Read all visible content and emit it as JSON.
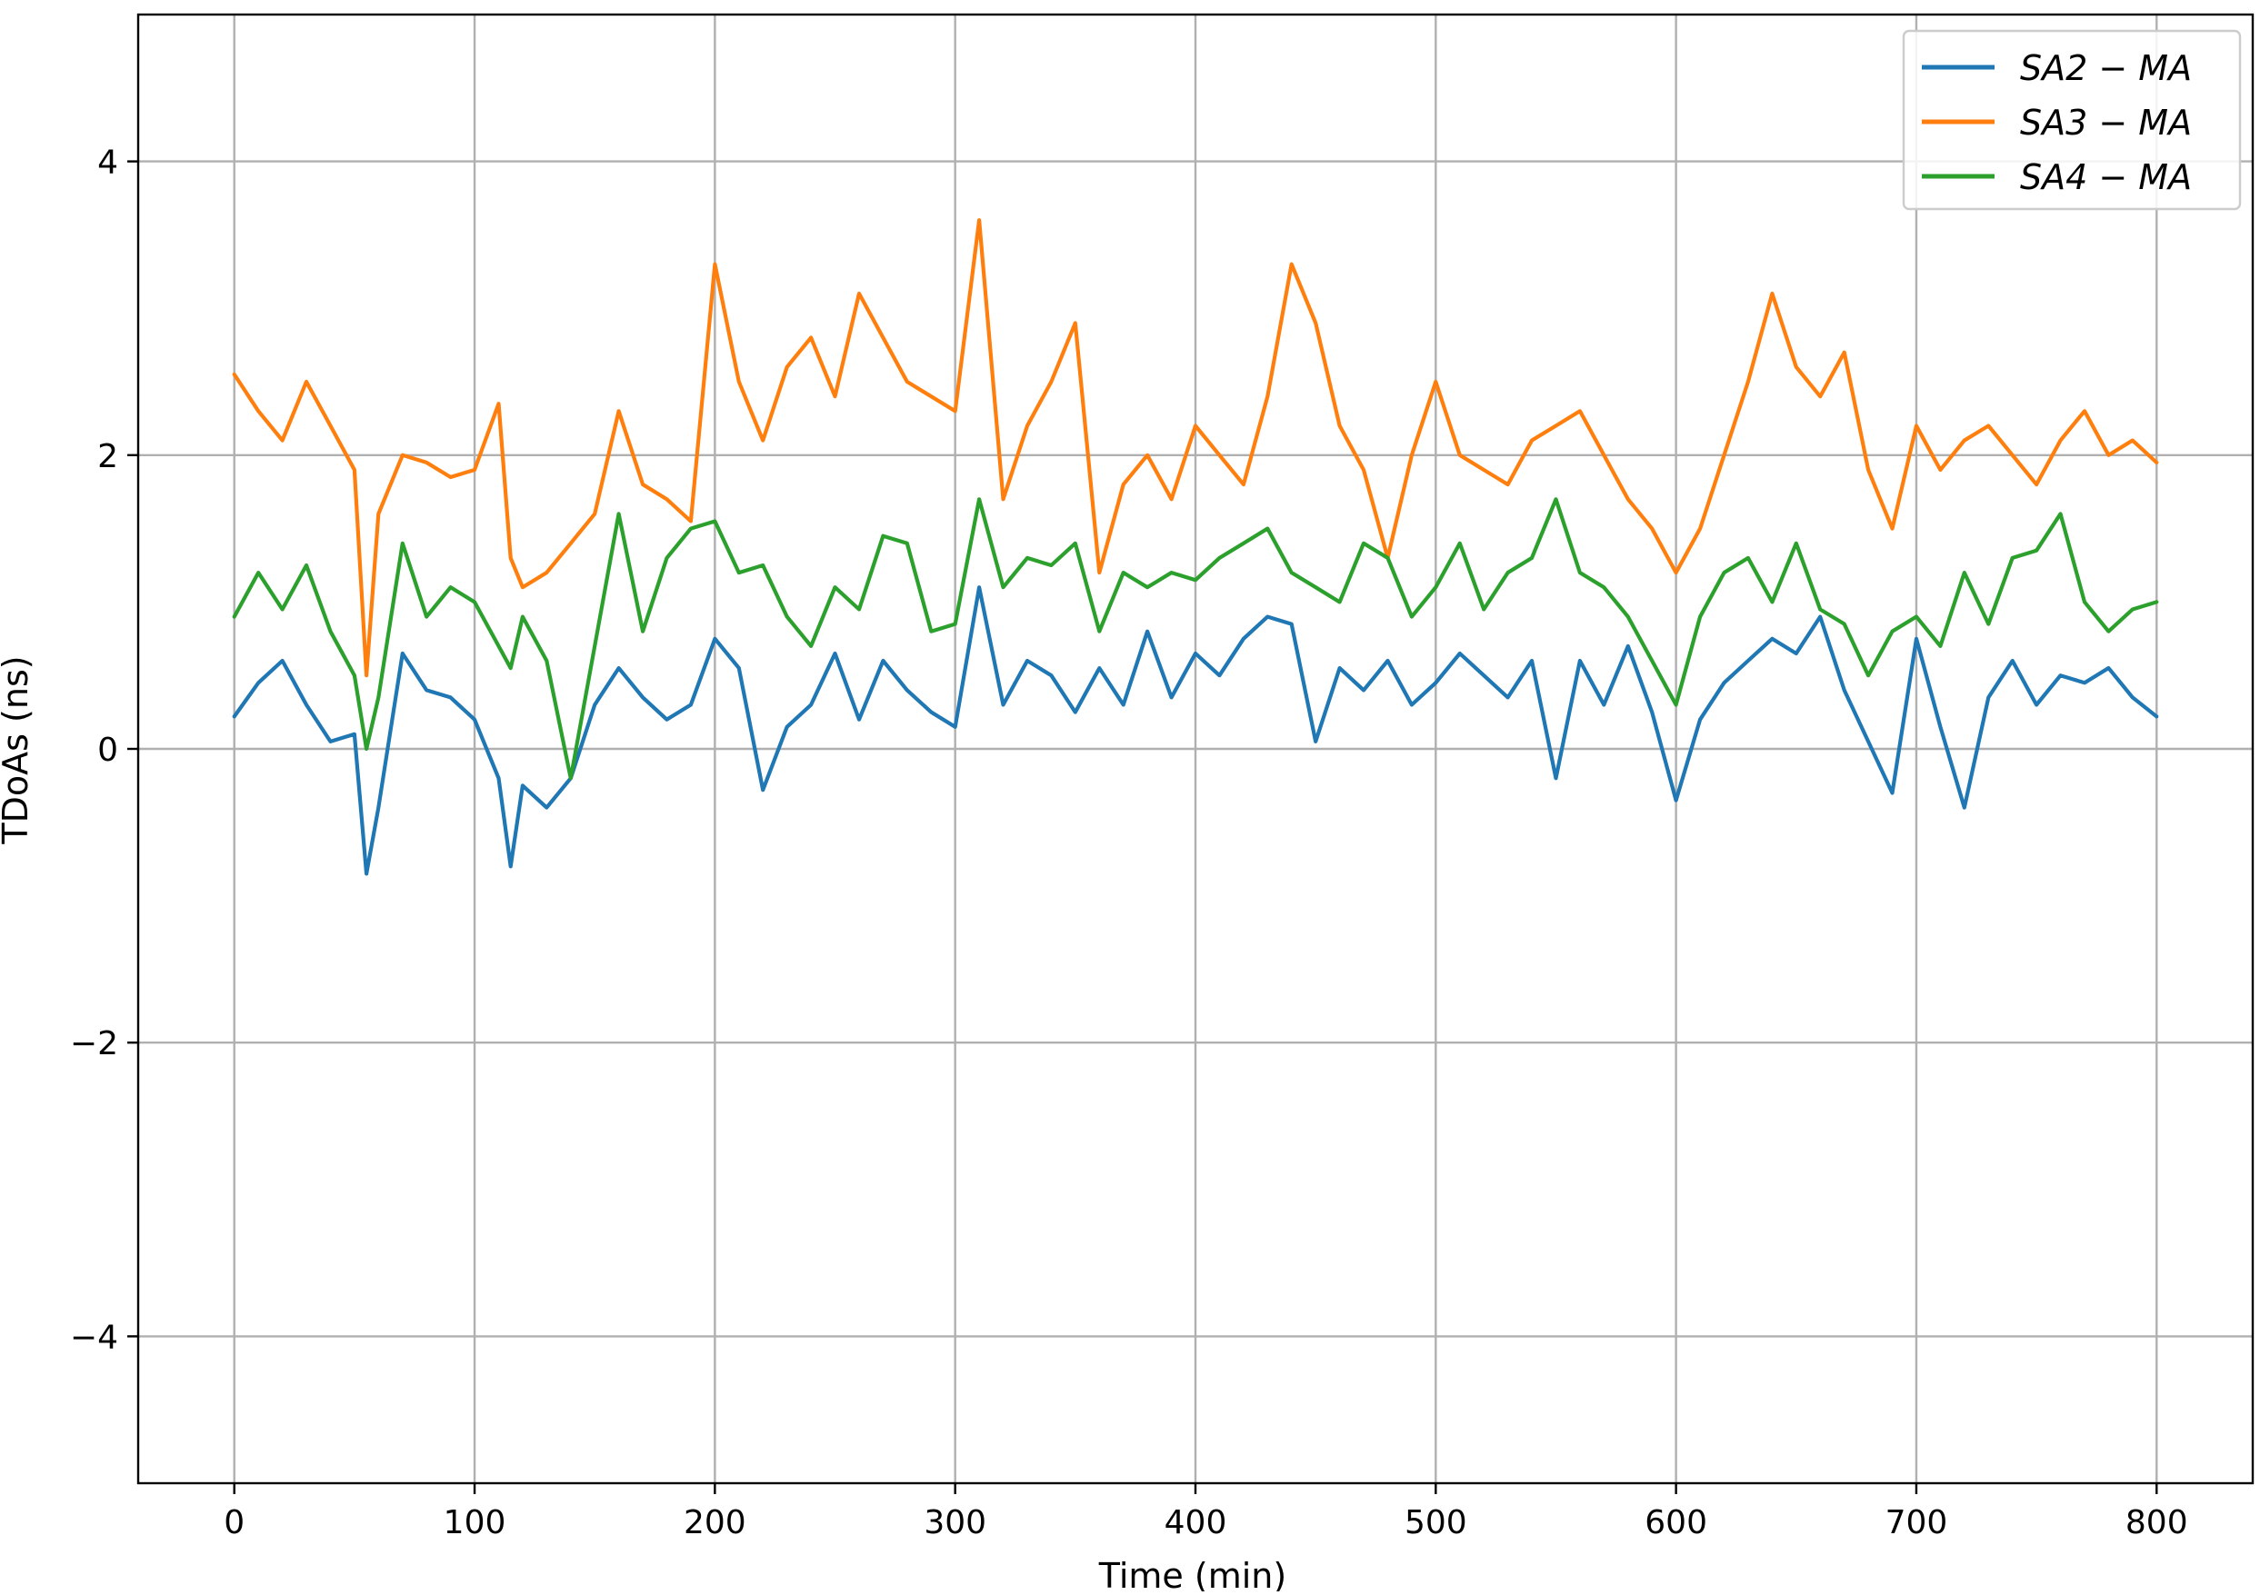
{
  "chart_data": {
    "type": "line",
    "title": "",
    "xlabel": "Time (min)",
    "ylabel": "TDoAs (ns)",
    "xlim": [
      -40,
      840
    ],
    "ylim": [
      -5,
      5
    ],
    "xticks": [
      0,
      100,
      200,
      300,
      400,
      500,
      600,
      700,
      800
    ],
    "xtick_labels": [
      "0",
      "100",
      "200",
      "300",
      "400",
      "500",
      "600",
      "700",
      "800"
    ],
    "yticks": [
      -4,
      -2,
      0,
      2,
      4
    ],
    "ytick_labels": [
      "−4",
      "−2",
      "0",
      "2",
      "4"
    ],
    "grid": true,
    "legend_position": "top-right",
    "x": [
      0,
      10,
      20,
      30,
      40,
      50,
      55,
      60,
      70,
      80,
      90,
      100,
      110,
      115,
      120,
      130,
      140,
      150,
      160,
      170,
      180,
      190,
      200,
      210,
      220,
      230,
      240,
      250,
      260,
      270,
      280,
      290,
      300,
      310,
      320,
      330,
      340,
      350,
      360,
      370,
      380,
      390,
      400,
      410,
      420,
      430,
      440,
      450,
      460,
      470,
      480,
      490,
      500,
      510,
      520,
      530,
      540,
      550,
      560,
      570,
      580,
      590,
      600,
      610,
      620,
      630,
      640,
      650,
      660,
      670,
      680,
      690,
      700,
      710,
      720,
      730,
      740,
      750,
      760,
      770,
      780,
      790,
      800
    ],
    "series": [
      {
        "name": "SA2 − MA",
        "color": "#1f77b4",
        "values": [
          0.22,
          0.45,
          0.6,
          0.3,
          0.05,
          0.1,
          -0.85,
          -0.4,
          0.65,
          0.4,
          0.35,
          0.2,
          -0.2,
          -0.8,
          -0.25,
          -0.4,
          -0.2,
          0.3,
          0.55,
          0.35,
          0.2,
          0.3,
          0.75,
          0.55,
          -0.28,
          0.15,
          0.3,
          0.65,
          0.2,
          0.6,
          0.4,
          0.25,
          0.15,
          1.1,
          0.3,
          0.6,
          0.5,
          0.25,
          0.55,
          0.3,
          0.8,
          0.35,
          0.65,
          0.5,
          0.75,
          0.9,
          0.85,
          0.05,
          0.55,
          0.4,
          0.6,
          0.3,
          0.45,
          0.65,
          0.5,
          0.35,
          0.6,
          -0.2,
          0.6,
          0.3,
          0.7,
          0.25,
          -0.35,
          0.2,
          0.45,
          0.6,
          0.75,
          0.65,
          0.9,
          0.4,
          0.05,
          -0.3,
          0.75,
          0.15,
          -0.4,
          0.35,
          0.6,
          0.3,
          0.5,
          0.45,
          0.55,
          0.35,
          0.22
        ]
      },
      {
        "name": "SA3 − MA",
        "color": "#ff7f0e",
        "values": [
          2.55,
          2.3,
          2.1,
          2.5,
          2.2,
          1.9,
          0.5,
          1.6,
          2.0,
          1.95,
          1.85,
          1.9,
          2.35,
          1.3,
          1.1,
          1.2,
          1.4,
          1.6,
          2.3,
          1.8,
          1.7,
          1.55,
          3.3,
          2.5,
          2.1,
          2.6,
          2.8,
          2.4,
          3.1,
          2.8,
          2.5,
          2.4,
          2.3,
          3.6,
          1.7,
          2.2,
          2.5,
          2.9,
          1.2,
          1.8,
          2.0,
          1.7,
          2.2,
          2.0,
          1.8,
          2.4,
          3.3,
          2.9,
          2.2,
          1.9,
          1.3,
          2.0,
          2.5,
          2.0,
          1.9,
          1.8,
          2.1,
          2.2,
          2.3,
          2.0,
          1.7,
          1.5,
          1.2,
          1.5,
          2.0,
          2.5,
          3.1,
          2.6,
          2.4,
          2.7,
          1.9,
          1.5,
          2.2,
          1.9,
          2.1,
          2.2,
          2.0,
          1.8,
          2.1,
          2.3,
          2.0,
          2.1,
          1.95
        ]
      },
      {
        "name": "SA4 − MA",
        "color": "#2ca02c",
        "values": [
          0.9,
          1.2,
          0.95,
          1.25,
          0.8,
          0.5,
          0.0,
          0.35,
          1.4,
          0.9,
          1.1,
          1.0,
          0.7,
          0.55,
          0.9,
          0.6,
          -0.2,
          0.7,
          1.6,
          0.8,
          1.3,
          1.5,
          1.55,
          1.2,
          1.25,
          0.9,
          0.7,
          1.1,
          0.95,
          1.45,
          1.4,
          0.8,
          0.85,
          1.7,
          1.1,
          1.3,
          1.25,
          1.4,
          0.8,
          1.2,
          1.1,
          1.2,
          1.15,
          1.3,
          1.4,
          1.5,
          1.2,
          1.1,
          1.0,
          1.4,
          1.3,
          0.9,
          1.1,
          1.4,
          0.95,
          1.2,
          1.3,
          1.7,
          1.2,
          1.1,
          0.9,
          0.6,
          0.3,
          0.9,
          1.2,
          1.3,
          1.0,
          1.4,
          0.95,
          0.85,
          0.5,
          0.8,
          0.9,
          0.7,
          1.2,
          0.85,
          1.3,
          1.35,
          1.6,
          1.0,
          0.8,
          0.95,
          1.0
        ]
      }
    ]
  }
}
